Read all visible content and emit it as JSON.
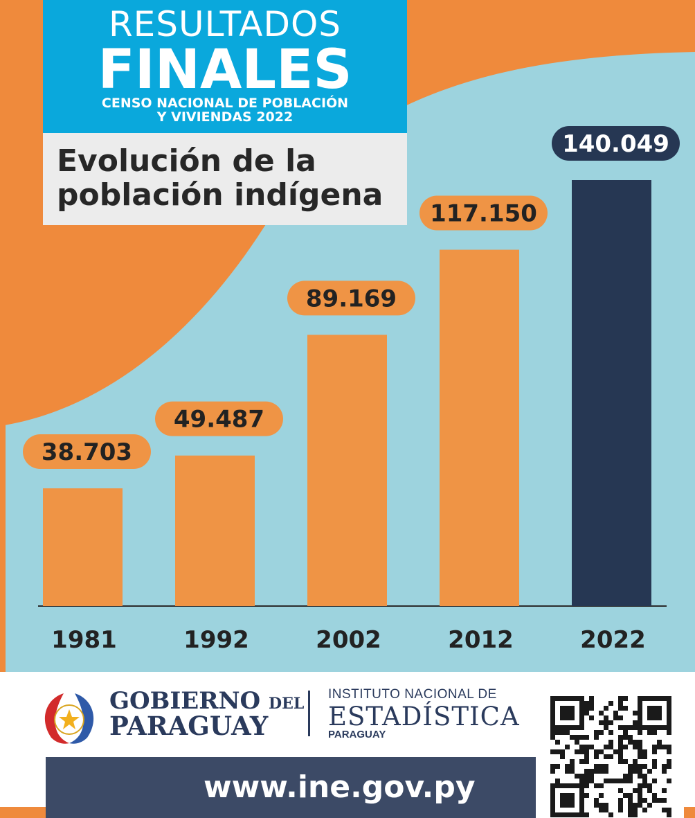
{
  "header": {
    "line1": "RESULTADOS",
    "line2": "FINALES",
    "line3a": "CENSO NACIONAL DE POBLACIÓN",
    "line3b": "Y VIVIENDAS 2022"
  },
  "title": {
    "line1": "Evolución de la",
    "line2": "población indígena"
  },
  "chart_data": {
    "type": "bar",
    "categories": [
      "1981",
      "1992",
      "2002",
      "2012",
      "2022"
    ],
    "values": [
      38703,
      49487,
      89169,
      117150,
      140049
    ],
    "labels": [
      "38.703",
      "49.487",
      "89.169",
      "117.150",
      "140.049"
    ],
    "title": "Evolución de la población indígena",
    "colors": {
      "bar": "#ef9445",
      "highlight": "#263753"
    },
    "grid": false
  },
  "footer": {
    "gov_line1": "GOBIERNO",
    "gov_del": "DEL",
    "gov_line2": "PARAGUAY",
    "ine_line1": "INSTITUTO NACIONAL DE",
    "ine_line2": "ESTADÍSTICA",
    "ine_line3": "PARAGUAY",
    "url": "www.ine.gov.py"
  },
  "colors": {
    "orange": "#ef8a3c",
    "lightblue": "#9dd3de",
    "blue": "#0aa8dc",
    "navy": "#263753"
  }
}
